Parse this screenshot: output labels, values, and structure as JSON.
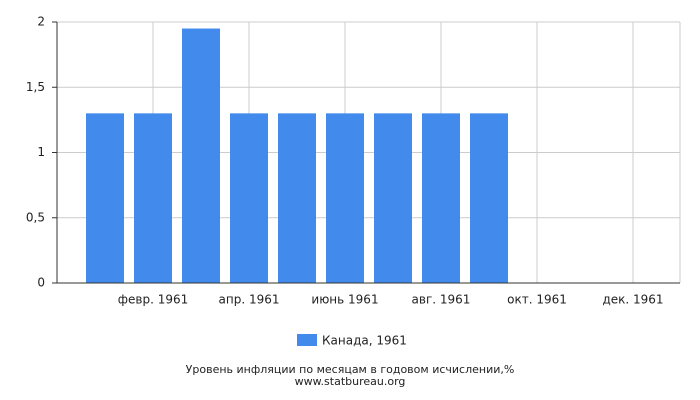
{
  "chart_data": {
    "type": "bar",
    "categories": [
      null,
      "февр. 1961",
      null,
      "апр. 1961",
      null,
      "июнь 1961",
      null,
      "авг. 1961",
      null,
      "окт. 1961",
      null,
      "дек. 1961"
    ],
    "series": [
      {
        "name": "Канада, 1961",
        "color": "#428bed",
        "values": [
          1.3,
          1.3,
          1.95,
          1.3,
          1.3,
          1.3,
          1.3,
          1.3,
          1.3,
          null,
          null,
          null
        ]
      }
    ],
    "ylim": [
      0,
      2
    ],
    "yticks": [
      0,
      {
        "value": 0.5,
        "label": "0,5"
      },
      1,
      {
        "value": 1.5,
        "label": "1,5"
      },
      2
    ],
    "grid": true,
    "legend": "bottom",
    "caption": "Уровень инфляции по месяцам в годовом исчислении,%",
    "source": "www.statbureau.org"
  }
}
